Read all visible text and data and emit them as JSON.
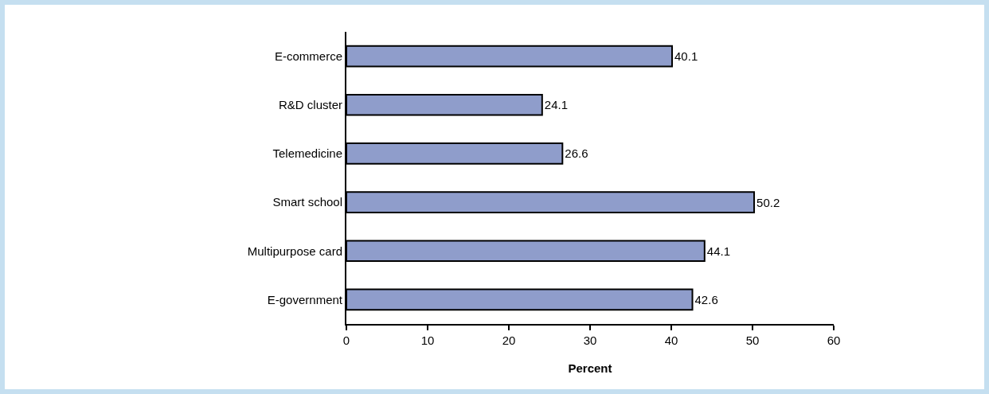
{
  "chart_data": {
    "type": "bar",
    "orientation": "horizontal",
    "categories": [
      "E-commerce",
      "R&D cluster",
      "Telemedicine",
      "Smart school",
      "Multipurpose card",
      "E-government"
    ],
    "values": [
      40.1,
      24.1,
      26.6,
      50.2,
      44.1,
      42.6
    ],
    "color": "#8f9dcb",
    "xlabel": "Percent",
    "xlim": [
      0,
      60
    ],
    "xticks": [
      0,
      10,
      20,
      30,
      40,
      50,
      60
    ],
    "data_labels": true,
    "grid": false,
    "legend": false
  }
}
